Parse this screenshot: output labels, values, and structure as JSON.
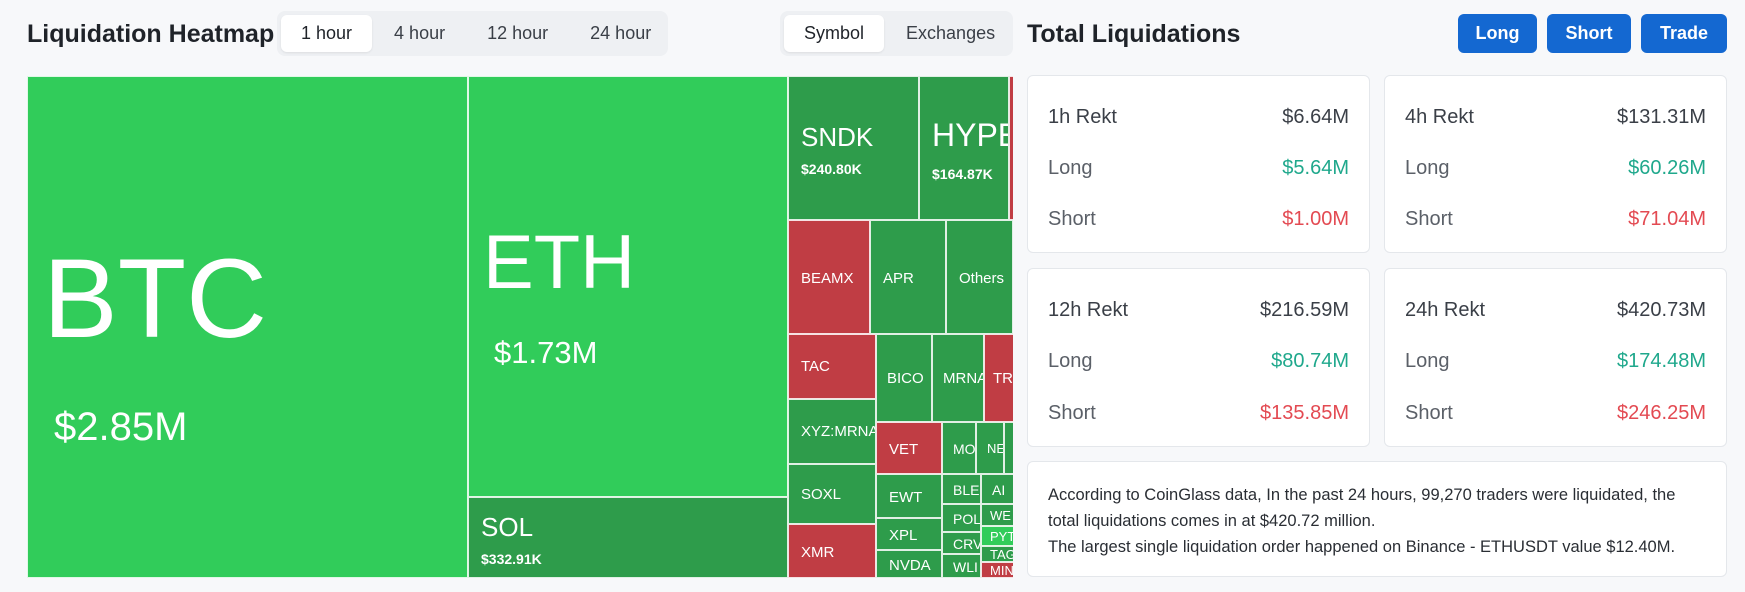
{
  "heatmap": {
    "title": "Liquidation Heatmap",
    "time_tabs": [
      {
        "label": "1 hour",
        "active": true
      },
      {
        "label": "4 hour",
        "active": false
      },
      {
        "label": "12 hour",
        "active": false
      },
      {
        "label": "24 hour",
        "active": false
      }
    ],
    "view_tabs": [
      {
        "label": "Symbol",
        "active": true
      },
      {
        "label": "Exchanges",
        "active": false
      }
    ],
    "tiles": {
      "btc": {
        "symbol": "BTC",
        "value": "$2.85M"
      },
      "eth": {
        "symbol": "ETH",
        "value": "$1.73M"
      },
      "sol": {
        "symbol": "SOL",
        "value": "$332.91K"
      },
      "sndk": {
        "symbol": "SNDK",
        "value": "$240.80K"
      },
      "hype": {
        "symbol": "HYPE",
        "value": "$164.87K"
      },
      "beamx": {
        "symbol": "BEAMX"
      },
      "apr": {
        "symbol": "APR"
      },
      "others": {
        "symbol": "Others"
      },
      "tac": {
        "symbol": "TAC"
      },
      "bico": {
        "symbol": "BICO"
      },
      "mrna": {
        "symbol": "MRNA"
      },
      "tr": {
        "symbol": "TR"
      },
      "xyzmrna": {
        "symbol": "XYZ:MRNA"
      },
      "vet": {
        "symbol": "VET"
      },
      "mo": {
        "symbol": "MO"
      },
      "ne": {
        "symbol": "NE"
      },
      "soxl": {
        "symbol": "SOXL"
      },
      "ewt": {
        "symbol": "EWT"
      },
      "ble": {
        "symbol": "BLE"
      },
      "ai": {
        "symbol": "AI"
      },
      "pol": {
        "symbol": "POL"
      },
      "we": {
        "symbol": "WE"
      },
      "xpl": {
        "symbol": "XPL"
      },
      "crv": {
        "symbol": "CRV"
      },
      "pyt": {
        "symbol": "PYT"
      },
      "tag": {
        "symbol": "TAG"
      },
      "xmr": {
        "symbol": "XMR"
      },
      "nvda": {
        "symbol": "NVDA"
      },
      "wl": {
        "symbol": "WLI"
      },
      "min": {
        "symbol": "MIN"
      }
    }
  },
  "totals": {
    "title": "Total Liquidations",
    "buttons": {
      "long": "Long",
      "short": "Short",
      "trade": "Trade"
    },
    "cards": [
      {
        "period": "1h Rekt",
        "total": "$6.64M",
        "long_label": "Long",
        "long": "$5.64M",
        "short_label": "Short",
        "short": "$1.00M"
      },
      {
        "period": "4h Rekt",
        "total": "$131.31M",
        "long_label": "Long",
        "long": "$60.26M",
        "short_label": "Short",
        "short": "$71.04M"
      },
      {
        "period": "12h Rekt",
        "total": "$216.59M",
        "long_label": "Long",
        "long": "$80.74M",
        "short_label": "Short",
        "short": "$135.85M"
      },
      {
        "period": "24h Rekt",
        "total": "$420.73M",
        "long_label": "Long",
        "long": "$174.48M",
        "short_label": "Short",
        "short": "$246.25M"
      }
    ],
    "summary": {
      "line1": "According to CoinGlass data, In the past 24 hours, 99,270 traders were liquidated, the total liquidations comes in at $420.72 million.",
      "line2": "The largest single liquidation order happened on Binance - ETHUSDT value $12.40M."
    }
  },
  "colors": {
    "green_large": "#31cc5a",
    "green_dark": "#2e9c4b",
    "red": "#c03d44",
    "accent_blue": "#1468d1",
    "long_text": "#1fa88c",
    "short_text": "#e34a52"
  }
}
